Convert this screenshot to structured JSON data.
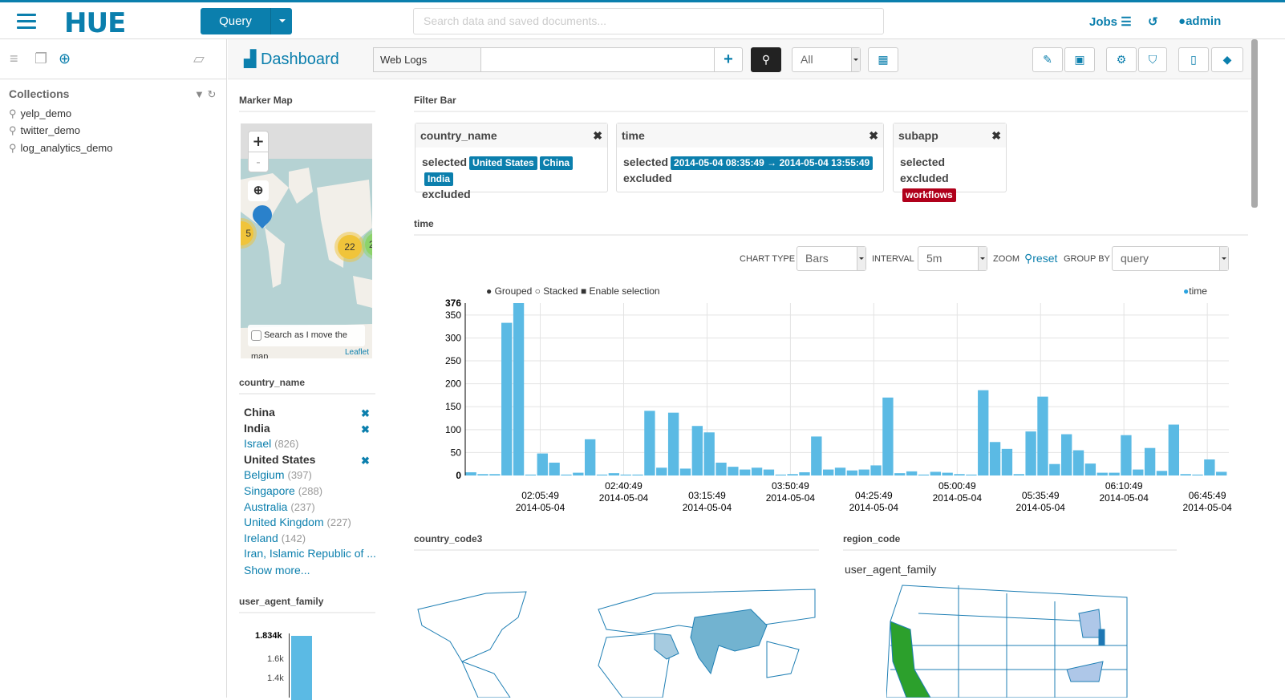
{
  "topbar": {
    "logo": "HUE",
    "query_button": "Query",
    "search_placeholder": "Search data and saved documents...",
    "jobs": "Jobs",
    "user": "admin"
  },
  "sidebar": {
    "collections_title": "Collections",
    "collections": [
      "yelp_demo",
      "twitter_demo",
      "log_analytics_demo"
    ]
  },
  "header": {
    "title": "Dashboard",
    "collection": "Web Logs",
    "query_value": "",
    "filter_select": "All"
  },
  "marker_map": {
    "title": "Marker Map",
    "zoom_in": "+",
    "zoom_out": "-",
    "clusters": [
      "5",
      "22",
      "2"
    ],
    "search_checkbox": "Search as I move the map",
    "attribution": "Leaflet"
  },
  "filter_bar": {
    "title": "Filter Bar",
    "cards": [
      {
        "field": "country_name",
        "selected_label": "selected",
        "excluded_label": "excluded",
        "selected": [
          "United States",
          "China",
          "India"
        ],
        "excluded": []
      },
      {
        "field": "time",
        "selected_label": "selected",
        "excluded_label": "excluded",
        "selected": [
          "2014-05-04  08:35:49 → 2014-05-04  13:55:49"
        ],
        "excluded": []
      },
      {
        "field": "subapp",
        "selected_label": "selected",
        "excluded_label": "excluded",
        "selected": [],
        "excluded": [
          "workflows"
        ]
      }
    ]
  },
  "country_facet": {
    "title": "country_name",
    "items": [
      {
        "label": "China",
        "count": "",
        "selected": true
      },
      {
        "label": "India",
        "count": "",
        "selected": true
      },
      {
        "label": "Israel",
        "count": "(826)",
        "selected": false
      },
      {
        "label": "United States",
        "count": "",
        "selected": true
      },
      {
        "label": "Belgium",
        "count": "(397)",
        "selected": false
      },
      {
        "label": "Singapore",
        "count": "(288)",
        "selected": false
      },
      {
        "label": "Australia",
        "count": "(237)",
        "selected": false
      },
      {
        "label": "United Kingdom",
        "count": "(227)",
        "selected": false
      },
      {
        "label": "Ireland",
        "count": "(142)",
        "selected": false
      },
      {
        "label": "Iran, Islamic Republic of ...",
        "count": "",
        "selected": false
      }
    ],
    "show_more": "Show more..."
  },
  "ua_facet": {
    "title": "user_agent_family",
    "ticks": [
      "1.834k",
      "1.6k",
      "1.4k"
    ]
  },
  "time_widget": {
    "title": "time",
    "chart_type_label": "CHART TYPE",
    "chart_type": "Bars",
    "interval_label": "INTERVAL",
    "interval": "5m",
    "zoom_label": "ZOOM",
    "reset": "reset",
    "group_by_label": "GROUP BY",
    "group_by": "query",
    "opt_grouped": "Grouped",
    "opt_stacked": "Stacked",
    "opt_selection": "Enable selection"
  },
  "chart_data": {
    "type": "bar",
    "legend": "time",
    "legend_position": "top-right",
    "color": "#5BBAE4",
    "ylim": [
      0,
      376
    ],
    "yticks": [
      "0",
      "50",
      "100",
      "150",
      "200",
      "250",
      "300",
      "350",
      "376"
    ],
    "xticks": [
      [
        "02:05:49",
        "2014-05-04"
      ],
      [
        "02:40:49",
        "2014-05-04"
      ],
      [
        "03:15:49",
        "2014-05-04"
      ],
      [
        "03:50:49",
        "2014-05-04"
      ],
      [
        "04:25:49",
        "2014-05-04"
      ],
      [
        "05:00:49",
        "2014-05-04"
      ],
      [
        "05:35:49",
        "2014-05-04"
      ],
      [
        "06:10:49",
        "2014-05-04"
      ],
      [
        "06:45:49",
        "2014-05-04"
      ]
    ],
    "interval": "5m",
    "grid": true,
    "values": [
      7,
      3,
      3,
      333,
      376,
      2,
      48,
      28,
      2,
      6,
      79,
      2,
      5,
      2,
      2,
      141,
      17,
      137,
      15,
      108,
      94,
      28,
      19,
      13,
      17,
      13,
      2,
      3,
      7,
      85,
      13,
      17,
      11,
      13,
      22,
      170,
      5,
      9,
      2,
      8,
      6,
      3,
      2,
      186,
      73,
      58,
      3,
      96,
      172,
      25,
      90,
      55,
      26,
      6,
      6,
      88,
      13,
      60,
      10,
      111,
      3,
      2,
      35,
      8
    ]
  },
  "country_code3": {
    "title": "country_code3"
  },
  "region_code": {
    "title": "region_code",
    "subtitle": "user_agent_family"
  },
  "colors": {
    "brand": "#0B7FAD",
    "bar": "#5BBAE4",
    "excluded": "#B0001B"
  }
}
